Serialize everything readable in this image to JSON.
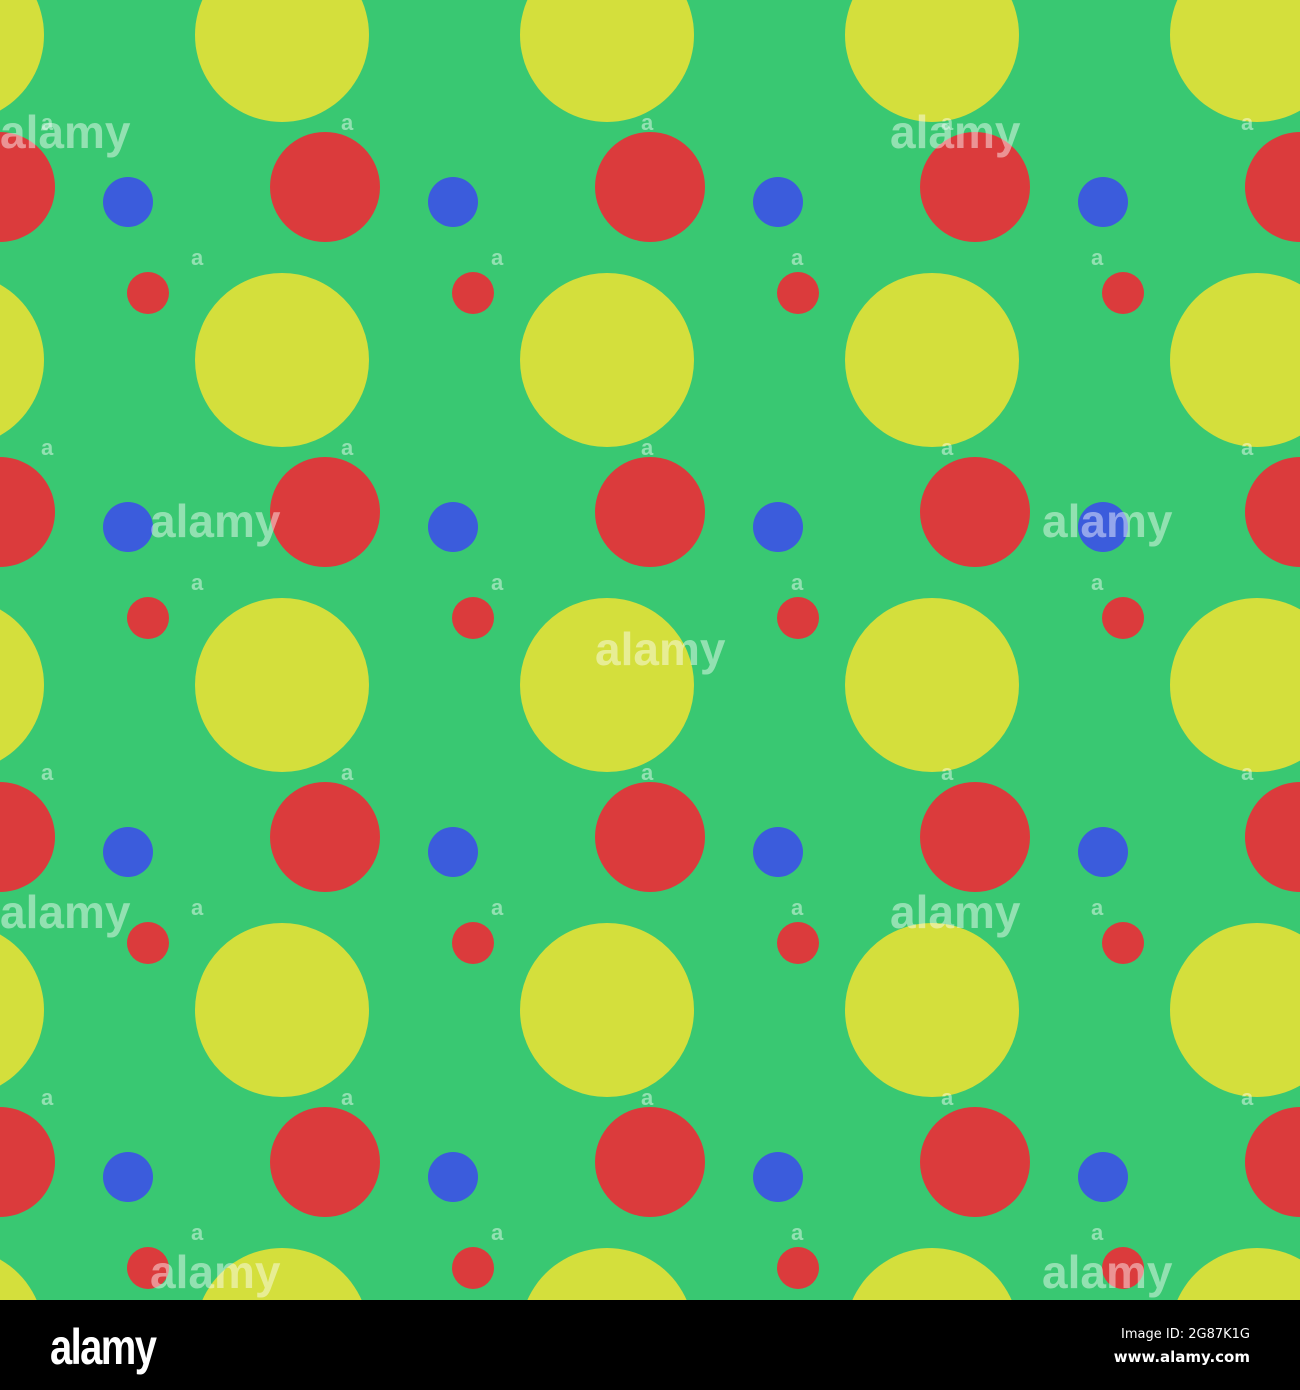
{
  "colors": {
    "background": "#39c872",
    "large_dot": "#d4df3c",
    "red_dot": "#db3b3c",
    "blue_dot": "#3b5cdc"
  },
  "watermark": {
    "text": "alamy",
    "small_text": "a"
  },
  "footer": {
    "logo": "alamy",
    "image_id": "Image ID: 2G87K1G",
    "website": "www.alamy.com"
  }
}
